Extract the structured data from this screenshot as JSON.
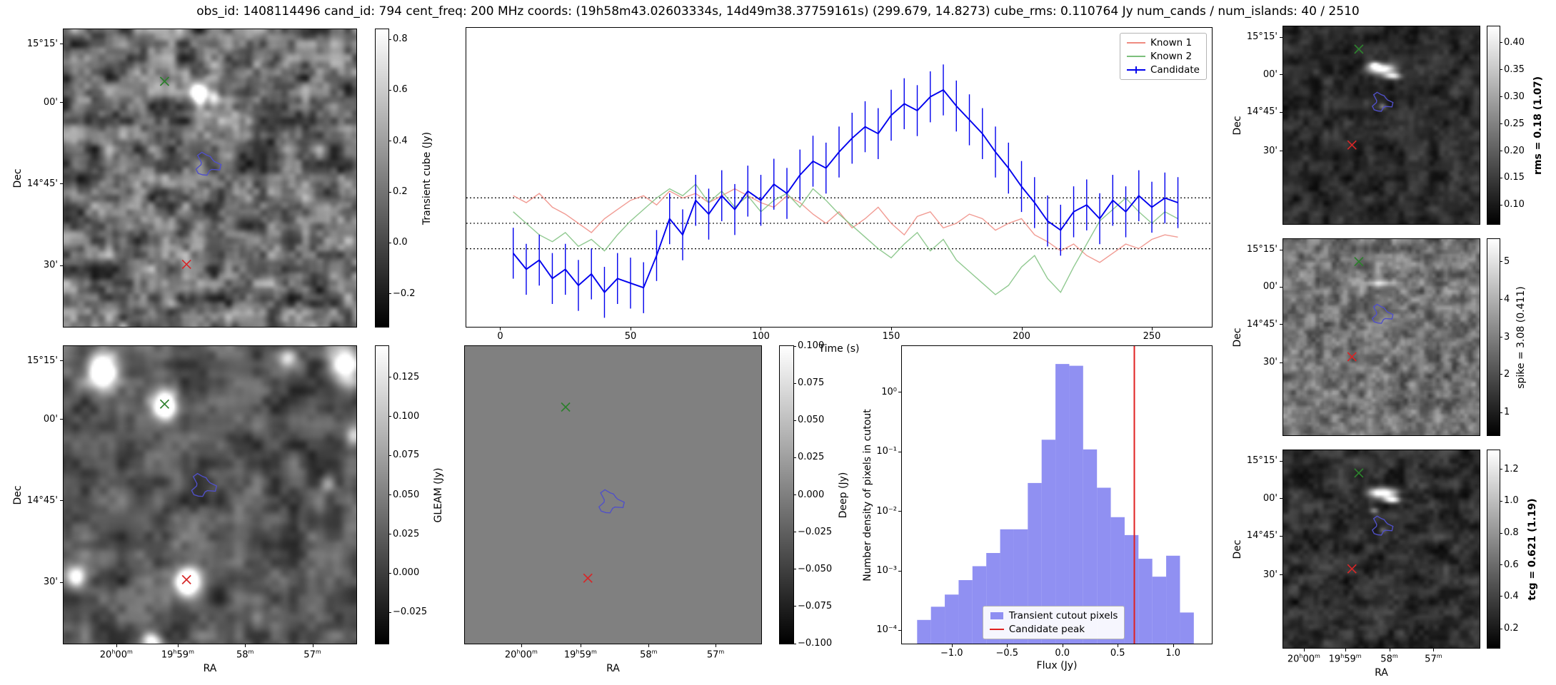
{
  "title": "obs_id: 1408114496 cand_id: 794 cent_freq: 200 MHz coords: (19h58m43.02603334s, 14d49m38.37759161s) (299.679, 14.8273) cube_rms: 0.110764 Jy num_cands / num_islands: 40 / 2510",
  "colors": {
    "candidate": "#0000ee",
    "known1": "#ef8a80",
    "known2": "#7cbf7c",
    "marker_green": "#2d7f2d",
    "marker_red": "#d62728",
    "contour_blue": "#5050c8",
    "hist_fill": "#7c7cf0",
    "hist_line": "#e02020"
  },
  "axes": {
    "ra_label": "RA",
    "dec_label": "Dec",
    "ra_ticks": [
      "20h00m",
      "19h59m",
      "58m",
      "57m"
    ],
    "dec_ticks": [
      "15°15'",
      "00'",
      "14°45'",
      "30'"
    ]
  },
  "image_panels": [
    {
      "id": "tcube",
      "name": "transient-cube",
      "show_dec": true,
      "show_ra": false,
      "dec_fracs": [
        0.05,
        0.246,
        0.52,
        0.794
      ],
      "ra_fracs": [
        0.18,
        0.39,
        0.62,
        0.85
      ],
      "markers": {
        "green": [
          0.345,
          0.175
        ],
        "red": [
          0.42,
          0.79
        ],
        "contour": [
          0.49,
          0.455,
          0.034
        ]
      },
      "texture": {
        "seed": 11,
        "base": 0.42,
        "contrast": 0.34,
        "cell": 7,
        "features": [
          [
            0.46,
            0.21,
            0.018,
            0.022,
            0.95
          ],
          [
            0.51,
            0.225,
            0.014,
            0.018,
            0.5
          ]
        ]
      },
      "colorbar": {
        "label": "Transient cube (Jy)",
        "bold": false,
        "ticks": [
          [
            "0.8",
            0.034
          ],
          [
            "0.6",
            0.205
          ],
          [
            "0.4",
            0.376
          ],
          [
            "0.2",
            0.547
          ],
          [
            "0.0",
            0.718
          ],
          [
            "−0.2",
            0.889
          ]
        ]
      }
    },
    {
      "id": "gleam",
      "name": "gleam",
      "show_dec": true,
      "show_ra": true,
      "dec_fracs": [
        0.05,
        0.246,
        0.52,
        0.794
      ],
      "ra_fracs": [
        0.18,
        0.39,
        0.62,
        0.85
      ],
      "markers": {
        "green": [
          0.345,
          0.195
        ],
        "red": [
          0.42,
          0.785
        ],
        "contour": [
          0.475,
          0.47,
          0.034
        ]
      },
      "texture": {
        "seed": 22,
        "base": 0.33,
        "contrast": 0.2,
        "cell": 9,
        "features": [
          [
            0.13,
            0.075,
            0.035,
            0.04,
            1.2
          ],
          [
            0.345,
            0.195,
            0.03,
            0.035,
            1.1
          ],
          [
            0.42,
            0.79,
            0.028,
            0.032,
            1.3
          ],
          [
            0.96,
            0.06,
            0.035,
            0.04,
            1.0
          ],
          [
            0.99,
            0.3,
            0.02,
            0.025,
            0.6
          ],
          [
            0.04,
            0.77,
            0.022,
            0.025,
            0.7
          ],
          [
            0.3,
            0.985,
            0.025,
            0.02,
            0.8
          ],
          [
            0.76,
            0.035,
            0.02,
            0.02,
            0.5
          ],
          [
            0.9,
            0.46,
            0.018,
            0.02,
            0.45
          ]
        ]
      },
      "colorbar": {
        "label": "GLEAM (Jy)",
        "bold": false,
        "ticks": [
          [
            "0.125",
            0.105
          ],
          [
            "0.100",
            0.237
          ],
          [
            "0.075",
            0.368
          ],
          [
            "0.050",
            0.5
          ],
          [
            "0.025",
            0.632
          ],
          [
            "0.000",
            0.763
          ],
          [
            "−0.025",
            0.895
          ]
        ]
      }
    },
    {
      "id": "deep",
      "name": "deep",
      "show_dec": false,
      "show_ra": true,
      "dec_fracs": [
        0.05,
        0.246,
        0.52,
        0.794
      ],
      "ra_fracs": [
        0.19,
        0.39,
        0.62,
        0.846
      ],
      "markers": {
        "green": [
          0.34,
          0.205
        ],
        "red": [
          0.415,
          0.78
        ],
        "contour": [
          0.49,
          0.525,
          0.034
        ]
      },
      "texture": {
        "seed": 1,
        "base": 0.5,
        "contrast": 0.0,
        "cell": 10,
        "features": []
      },
      "colorbar": {
        "label": "Deep (Jy)",
        "bold": false,
        "ticks": [
          [
            "0.100",
            0.0
          ],
          [
            "0.075",
            0.125
          ],
          [
            "0.050",
            0.25
          ],
          [
            "0.025",
            0.375
          ],
          [
            "0.000",
            0.5
          ],
          [
            "−0.025",
            0.625
          ],
          [
            "−0.050",
            0.75
          ],
          [
            "−0.075",
            0.875
          ],
          [
            "−0.100",
            1.0
          ]
        ]
      }
    },
    {
      "id": "rms",
      "name": "rms-map",
      "show_dec": true,
      "show_ra": false,
      "dec_fracs": [
        0.055,
        0.245,
        0.435,
        0.63
      ],
      "ra_fracs": [
        0.105,
        0.315,
        0.54,
        0.765
      ],
      "markers": {
        "green": [
          0.385,
          0.115
        ],
        "red": [
          0.35,
          0.6
        ],
        "contour": [
          0.5,
          0.385,
          0.042
        ]
      },
      "texture": {
        "seed": 33,
        "base": 0.17,
        "contrast": 0.13,
        "cell": 5,
        "features": [
          [
            0.5,
            0.21,
            0.05,
            0.018,
            0.9
          ],
          [
            0.55,
            0.245,
            0.03,
            0.012,
            0.8
          ],
          [
            0.46,
            0.19,
            0.02,
            0.012,
            0.6
          ],
          [
            0.5,
            0.4,
            0.012,
            0.01,
            0.35
          ]
        ]
      },
      "colorbar": {
        "label": "rms = 0.18 (1.07)",
        "bold": true,
        "ticks": [
          [
            "0.40",
            0.082
          ],
          [
            "0.35",
            0.219
          ],
          [
            "0.30",
            0.356
          ],
          [
            "0.25",
            0.493
          ],
          [
            "0.20",
            0.63
          ],
          [
            "0.15",
            0.767
          ],
          [
            "0.10",
            0.904
          ]
        ]
      }
    },
    {
      "id": "spike",
      "name": "spike-map",
      "show_dec": true,
      "show_ra": false,
      "dec_fracs": [
        0.055,
        0.245,
        0.435,
        0.63
      ],
      "ra_fracs": [
        0.105,
        0.315,
        0.54,
        0.765
      ],
      "markers": {
        "green": [
          0.385,
          0.115
        ],
        "red": [
          0.35,
          0.6
        ],
        "contour": [
          0.5,
          0.385,
          0.042
        ]
      },
      "texture": {
        "seed": 44,
        "base": 0.45,
        "contrast": 0.22,
        "cell": 4,
        "features": [
          [
            0.5,
            0.22,
            0.06,
            0.01,
            0.35
          ]
        ]
      },
      "colorbar": {
        "label": "spike = 3.08 (0.411)",
        "bold": false,
        "ticks": [
          [
            "5",
            0.115
          ],
          [
            "4",
            0.308
          ],
          [
            "3",
            0.5
          ],
          [
            "2",
            0.69
          ],
          [
            "1",
            0.885
          ]
        ]
      }
    },
    {
      "id": "tcg",
      "name": "tcg-map",
      "show_dec": true,
      "show_ra": true,
      "dec_fracs": [
        0.055,
        0.245,
        0.435,
        0.63
      ],
      "ra_fracs": [
        0.105,
        0.315,
        0.54,
        0.765
      ],
      "markers": {
        "green": [
          0.385,
          0.115
        ],
        "red": [
          0.35,
          0.6
        ],
        "contour": [
          0.5,
          0.385,
          0.042
        ]
      },
      "texture": {
        "seed": 55,
        "base": 0.18,
        "contrast": 0.15,
        "cell": 5,
        "features": [
          [
            0.5,
            0.21,
            0.05,
            0.018,
            0.95
          ],
          [
            0.55,
            0.245,
            0.03,
            0.012,
            0.8
          ],
          [
            0.46,
            0.3,
            0.015,
            0.01,
            0.4
          ],
          [
            0.5,
            0.4,
            0.012,
            0.01,
            0.3
          ]
        ]
      },
      "colorbar": {
        "label": "tcg = 0.621 (1.19)",
        "bold": true,
        "ticks": [
          [
            "1.2",
            0.097
          ],
          [
            "1.0",
            0.258
          ],
          [
            "0.8",
            0.419
          ],
          [
            "0.6",
            0.58
          ],
          [
            "0.4",
            0.74
          ],
          [
            "0.2",
            0.903
          ]
        ]
      }
    }
  ],
  "chart_data": [
    {
      "type": "line",
      "title": "",
      "xlabel": "Time (s)",
      "ylabel": "Transient cube (Jy)",
      "xlim": [
        -13,
        273
      ],
      "ylim": [
        -0.45,
        0.85
      ],
      "x_ticks": [
        0,
        50,
        100,
        150,
        200,
        250
      ],
      "hlines": [
        0.110764,
        0.0,
        -0.110764
      ],
      "legend_position": "upper right",
      "x": [
        5,
        10,
        15,
        20,
        25,
        30,
        35,
        40,
        45,
        50,
        55,
        60,
        65,
        70,
        75,
        80,
        85,
        90,
        95,
        100,
        105,
        110,
        115,
        120,
        125,
        130,
        135,
        140,
        145,
        150,
        155,
        160,
        165,
        170,
        175,
        180,
        185,
        190,
        195,
        200,
        205,
        210,
        215,
        220,
        225,
        230,
        235,
        240,
        245,
        250,
        255,
        260
      ],
      "series": [
        {
          "name": "Known 1",
          "color": "known1",
          "values": [
            0.12,
            0.09,
            0.13,
            0.07,
            0.04,
            0.0,
            -0.04,
            0.02,
            0.06,
            0.1,
            0.12,
            0.08,
            0.14,
            0.11,
            0.13,
            0.09,
            0.12,
            0.15,
            0.12,
            0.09,
            0.07,
            0.12,
            0.09,
            0.04,
            0.0,
            0.05,
            -0.02,
            0.02,
            0.07,
            0.0,
            -0.05,
            0.03,
            0.05,
            -0.02,
            0.0,
            0.04,
            0.02,
            -0.03,
            0.0,
            0.02,
            -0.05,
            -0.08,
            -0.12,
            -0.09,
            -0.14,
            -0.17,
            -0.13,
            -0.09,
            -0.11,
            -0.07,
            -0.05,
            -0.06
          ]
        },
        {
          "name": "Known 2",
          "color": "known2",
          "values": [
            0.05,
            0.0,
            -0.05,
            -0.08,
            -0.04,
            -0.1,
            -0.07,
            -0.12,
            -0.05,
            0.01,
            0.06,
            0.11,
            0.15,
            0.12,
            0.17,
            0.09,
            0.14,
            0.07,
            0.12,
            0.05,
            0.1,
            0.13,
            0.07,
            0.15,
            0.1,
            0.04,
            -0.01,
            -0.06,
            -0.11,
            -0.15,
            -0.09,
            -0.04,
            -0.12,
            -0.07,
            -0.16,
            -0.21,
            -0.26,
            -0.31,
            -0.27,
            -0.19,
            -0.14,
            -0.24,
            -0.3,
            -0.19,
            -0.09,
            0.01,
            0.06,
            0.11,
            0.05,
            0.0,
            0.05,
            0.02
          ]
        },
        {
          "name": "Candidate",
          "color": "candidate",
          "yerr": 0.110764,
          "values": [
            -0.13,
            -0.2,
            -0.16,
            -0.24,
            -0.2,
            -0.27,
            -0.22,
            -0.3,
            -0.24,
            -0.26,
            -0.28,
            -0.14,
            0.02,
            -0.05,
            0.1,
            0.04,
            0.12,
            0.06,
            0.14,
            0.1,
            0.17,
            0.13,
            0.21,
            0.27,
            0.24,
            0.31,
            0.37,
            0.42,
            0.39,
            0.47,
            0.52,
            0.49,
            0.55,
            0.58,
            0.51,
            0.45,
            0.39,
            0.31,
            0.24,
            0.16,
            0.09,
            0.01,
            -0.03,
            0.05,
            0.08,
            0.02,
            0.1,
            0.05,
            0.12,
            0.07,
            0.11,
            0.09
          ]
        }
      ]
    },
    {
      "type": "bar",
      "title": "",
      "xlabel": "Flux (Jy)",
      "ylabel": "Number density of pixels in cutout",
      "yscale": "log",
      "xlim": [
        -1.45,
        1.35
      ],
      "ylim": [
        6e-05,
        6
      ],
      "x_ticks": [
        [
          "−1.0",
          -1.0
        ],
        [
          "−0.5",
          -0.5
        ],
        [
          "0.0",
          0.0
        ],
        [
          "0.5",
          0.5
        ],
        [
          "1.0",
          1.0
        ]
      ],
      "y_ticks": [
        [
          "10⁰",
          1
        ],
        [
          "10⁻¹",
          0.1
        ],
        [
          "10⁻²",
          0.01
        ],
        [
          "10⁻³",
          0.001
        ],
        [
          "10⁻⁴",
          0.0001
        ]
      ],
      "bin_width": 0.125,
      "bin_centers": [
        -1.25,
        -1.125,
        -1.0,
        -0.875,
        -0.75,
        -0.625,
        -0.5,
        -0.375,
        -0.25,
        -0.125,
        0.0,
        0.125,
        0.25,
        0.375,
        0.5,
        0.625,
        0.75,
        0.875,
        1.0,
        1.125
      ],
      "values": [
        0.00015,
        0.00025,
        0.0004,
        0.0007,
        0.0012,
        0.002,
        0.005,
        0.005,
        0.03,
        0.16,
        3.0,
        2.8,
        0.11,
        0.025,
        0.008,
        0.004,
        0.0016,
        0.0008,
        0.0018,
        0.0002
      ],
      "vline": {
        "x": 0.65,
        "label": "Candidate peak"
      },
      "legend": [
        "Transient cutout pixels",
        "Candidate peak"
      ]
    }
  ]
}
